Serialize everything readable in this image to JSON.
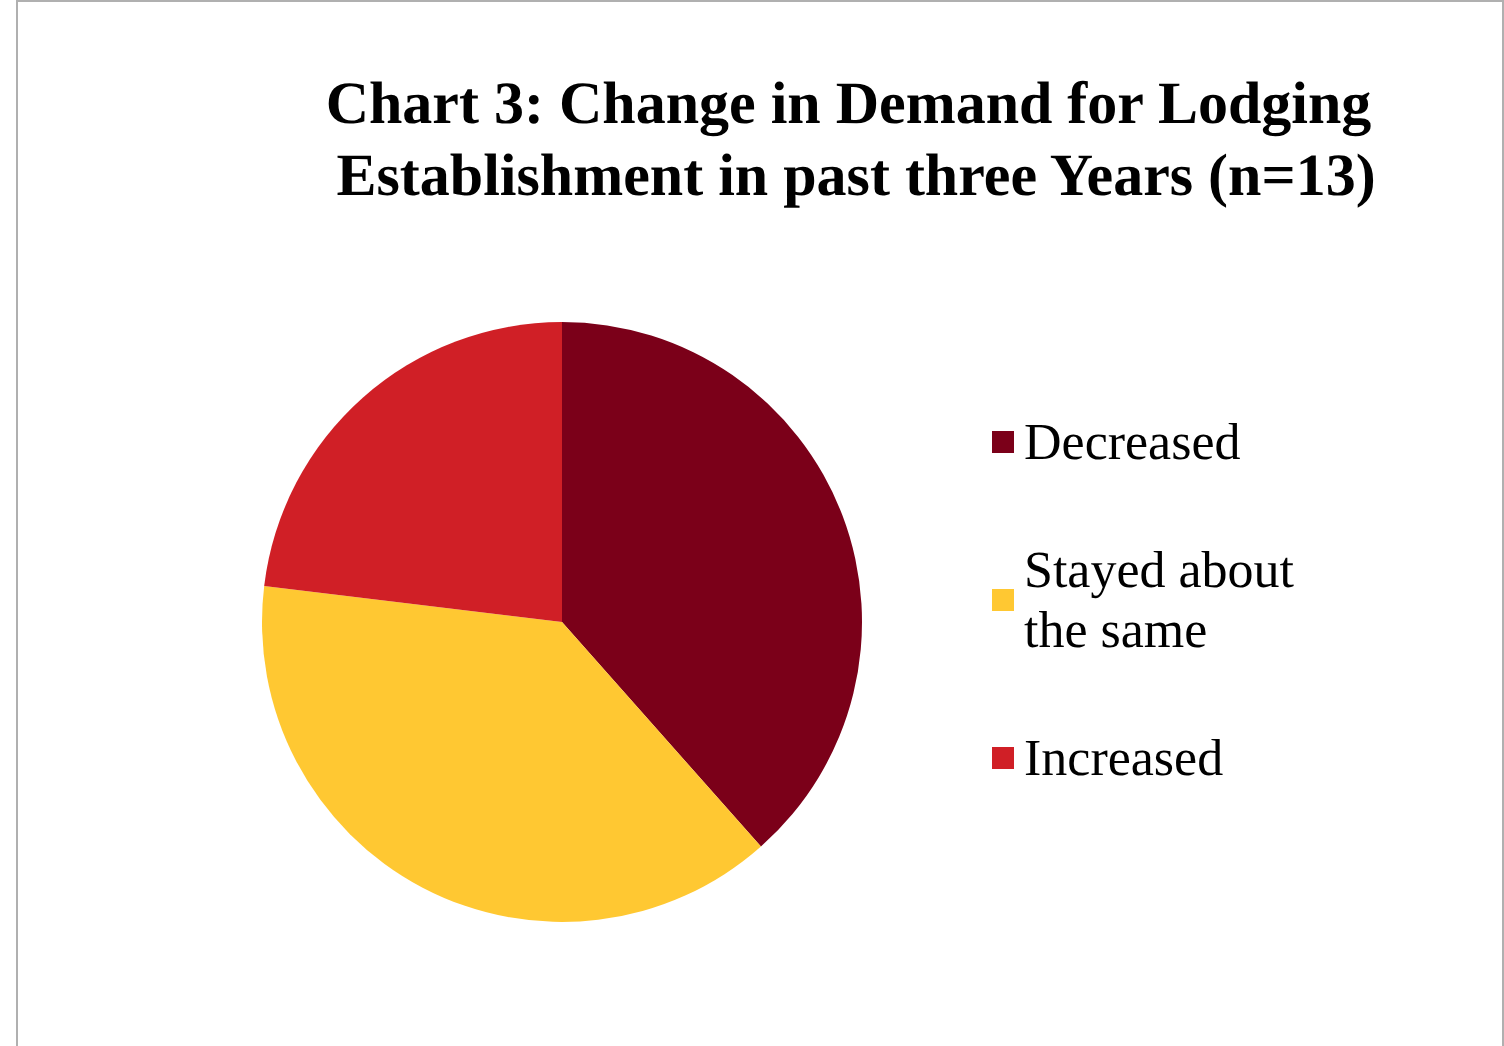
{
  "chart_data": {
    "type": "pie",
    "title": "Chart 3: Change in Demand for Lodging Establishment in past three Years (n=13)",
    "categories": [
      "Decreased",
      "Stayed about the same",
      "Increased"
    ],
    "values": [
      38.46,
      38.46,
      23.08
    ],
    "colors": [
      "#7b0019",
      "#ffc832",
      "#d01f26"
    ],
    "legend": "right"
  }
}
